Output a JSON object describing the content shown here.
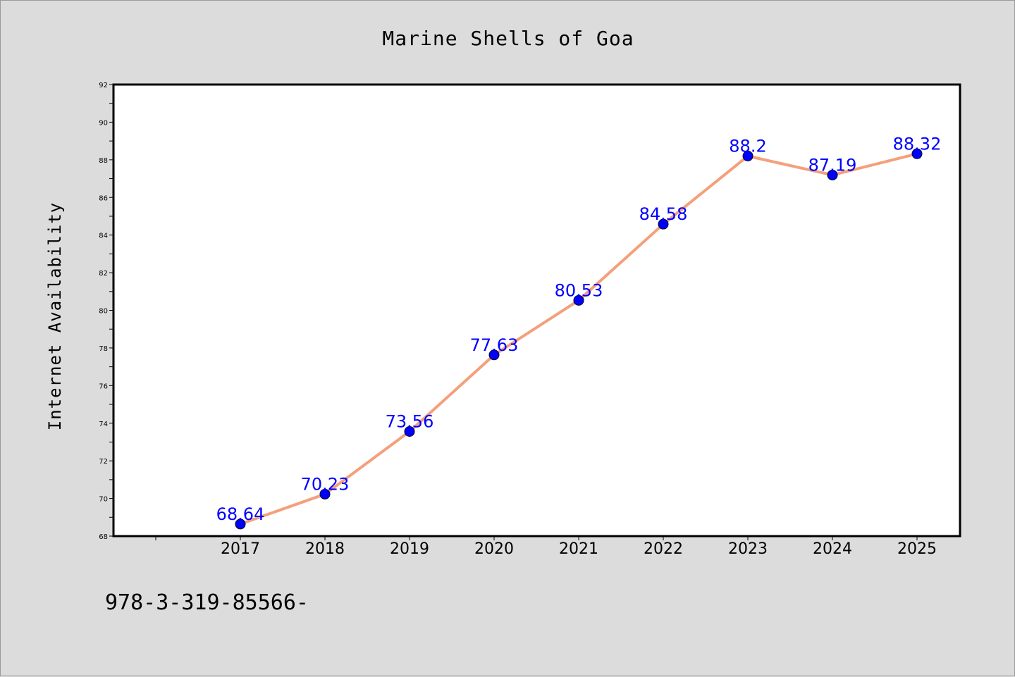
{
  "chart_data": {
    "type": "line",
    "title": "Marine Shells of Goa",
    "xlabel": "",
    "ylabel": "Internet Availability",
    "categories": [
      "2017",
      "2018",
      "2019",
      "2020",
      "2021",
      "2022",
      "2023",
      "2024",
      "2025"
    ],
    "series": [
      {
        "values": [
          68.64,
          70.23,
          73.56,
          77.63,
          80.53,
          84.58,
          88.2,
          87.19,
          88.32
        ],
        "labels": [
          "68.64",
          "70.23",
          "73.56",
          "77.63",
          "80.53",
          "84.58",
          "88.2",
          "87.19",
          "88.32"
        ],
        "line_color": "#f4a07c",
        "marker_color": "#0000ff"
      }
    ],
    "ylim": [
      68,
      92
    ],
    "yticks": [
      "68",
      "70",
      "72",
      "74",
      "76",
      "78",
      "80",
      "82",
      "84",
      "86",
      "88",
      "90",
      "92"
    ],
    "grid": false,
    "legend": "none"
  },
  "footer": {
    "text": "978-3-319-85566-"
  }
}
